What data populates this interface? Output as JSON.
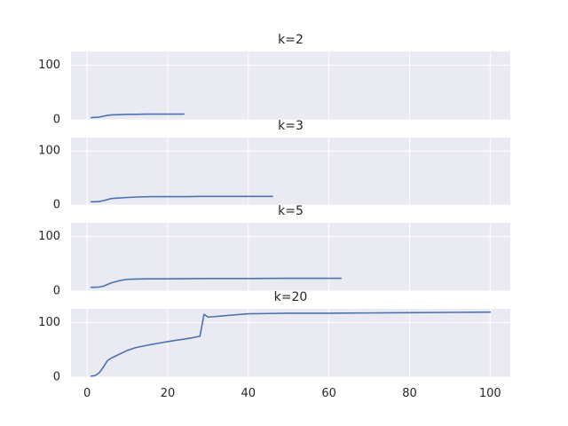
{
  "chart_data": [
    {
      "type": "line",
      "title": "k=2",
      "xlim": [
        -4,
        105
      ],
      "ylim": [
        0,
        125
      ],
      "yticks": [
        0,
        100
      ],
      "xticks": [
        0,
        20,
        40,
        60,
        80,
        100
      ],
      "show_xtick_labels": false,
      "grid": true,
      "series": [
        {
          "color": "#4c72b0",
          "x": [
            1,
            2,
            3,
            4,
            5,
            6,
            8,
            10,
            12,
            15,
            18,
            21,
            24
          ],
          "y": [
            4,
            4.5,
            5,
            6.5,
            8,
            9,
            9.5,
            10,
            10,
            10.5,
            10.5,
            10.5,
            10.5
          ]
        }
      ]
    },
    {
      "type": "line",
      "title": "k=3",
      "xlim": [
        -4,
        105
      ],
      "ylim": [
        0,
        125
      ],
      "yticks": [
        0,
        100
      ],
      "xticks": [
        0,
        20,
        40,
        60,
        80,
        100
      ],
      "show_xtick_labels": false,
      "grid": true,
      "series": [
        {
          "color": "#4c72b0",
          "x": [
            1,
            2,
            3,
            4,
            5,
            6,
            8,
            10,
            13,
            16,
            20,
            25,
            28,
            35,
            40,
            46
          ],
          "y": [
            6,
            6,
            6.5,
            8,
            10,
            12,
            13,
            14,
            15,
            15.5,
            15.5,
            15.5,
            16,
            16,
            16,
            16
          ]
        }
      ]
    },
    {
      "type": "line",
      "title": "k=5",
      "xlim": [
        -4,
        105
      ],
      "ylim": [
        0,
        125
      ],
      "yticks": [
        0,
        100
      ],
      "xticks": [
        0,
        20,
        40,
        60,
        80,
        100
      ],
      "show_xtick_labels": false,
      "grid": true,
      "series": [
        {
          "color": "#4c72b0",
          "x": [
            1,
            2,
            3,
            4,
            5,
            6,
            7,
            8,
            9,
            10,
            12,
            15,
            20,
            30,
            40,
            50,
            63
          ],
          "y": [
            7,
            7,
            7.5,
            9,
            12,
            15,
            17,
            19,
            20.5,
            21.5,
            22,
            22.5,
            22.5,
            23,
            23,
            23.5,
            23.5
          ]
        }
      ]
    },
    {
      "type": "line",
      "title": "k=20",
      "xlim": [
        -4,
        105
      ],
      "ylim": [
        0,
        125
      ],
      "yticks": [
        0,
        100
      ],
      "xticks": [
        0,
        20,
        40,
        60,
        80,
        100
      ],
      "xtick_labels": [
        "0",
        "20",
        "40",
        "60",
        "80",
        "100"
      ],
      "show_xtick_labels": true,
      "grid": true,
      "series": [
        {
          "color": "#4c72b0",
          "x": [
            1,
            2,
            3,
            4,
            5,
            6,
            8,
            10,
            12,
            14,
            16,
            18,
            20,
            22,
            24,
            26,
            28,
            29,
            30,
            32,
            35,
            40,
            45,
            50,
            60,
            70,
            80,
            90,
            100
          ],
          "y": [
            2,
            3,
            8,
            18,
            30,
            35,
            42,
            49,
            54,
            57,
            60,
            62.5,
            65,
            67.5,
            69.5,
            72,
            75,
            115,
            110,
            111,
            113,
            116,
            116.5,
            117,
            117,
            117.5,
            118,
            118.5,
            119
          ]
        }
      ]
    }
  ]
}
